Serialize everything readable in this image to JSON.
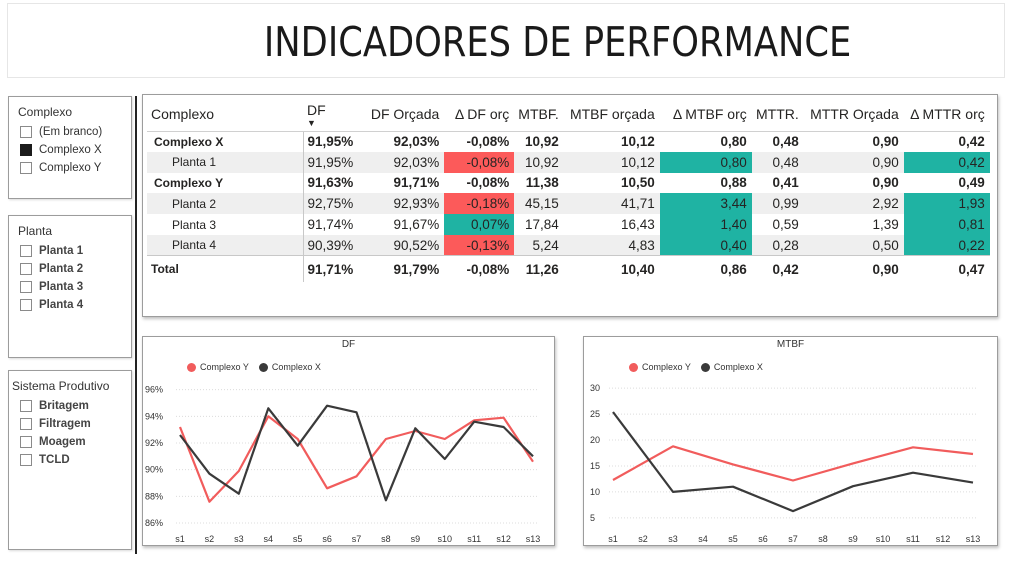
{
  "title": "INDICADORES DE PERFORMANCE",
  "colors": {
    "red": "#f15c5c",
    "dark": "#3a3a3a",
    "cell_red": "#fc5a5a",
    "cell_teal": "#1fb3a3"
  },
  "slicers": {
    "complexo": {
      "title": "Complexo",
      "items": [
        {
          "label": "(Em branco)",
          "checked": false
        },
        {
          "label": "Complexo X",
          "checked": true
        },
        {
          "label": "Complexo Y",
          "checked": false
        }
      ]
    },
    "planta": {
      "title": "Planta",
      "items": [
        {
          "label": "Planta 1",
          "checked": false
        },
        {
          "label": "Planta 2",
          "checked": false
        },
        {
          "label": "Planta 3",
          "checked": false
        },
        {
          "label": "Planta 4",
          "checked": false
        }
      ]
    },
    "sistema": {
      "title": "Sistema Produtivo",
      "items": [
        {
          "label": "Britagem",
          "checked": false
        },
        {
          "label": "Filtragem",
          "checked": false
        },
        {
          "label": "Moagem",
          "checked": false
        },
        {
          "label": "TCLD",
          "checked": false
        }
      ]
    }
  },
  "table": {
    "headers": [
      "Complexo",
      "DF",
      "DF Orçada",
      "Δ DF orç",
      "MTBF.",
      "MTBF orçada",
      "Δ MTBF orç",
      "MTTR.",
      "MTTR Orçada",
      "Δ MTTR orç"
    ],
    "sort_indicator": "▼",
    "rows": [
      {
        "type": "grp",
        "cells": [
          "Complexo X",
          "91,95%",
          "92,03%",
          "-0,08%",
          "10,92",
          "10,12",
          "0,80",
          "0,48",
          "0,90",
          "0,42"
        ],
        "hl": [
          "",
          "",
          "",
          "",
          "",
          "",
          "",
          "",
          "",
          ""
        ]
      },
      {
        "type": "sub alt",
        "cells": [
          "Planta 1",
          "91,95%",
          "92,03%",
          "-0,08%",
          "10,92",
          "10,12",
          "0,80",
          "0,48",
          "0,90",
          "0,42"
        ],
        "hl": [
          "",
          "",
          "",
          "red",
          "",
          "",
          "teal",
          "",
          "",
          "teal"
        ]
      },
      {
        "type": "grp",
        "cells": [
          "Complexo Y",
          "91,63%",
          "91,71%",
          "-0,08%",
          "11,38",
          "10,50",
          "0,88",
          "0,41",
          "0,90",
          "0,49"
        ],
        "hl": [
          "",
          "",
          "",
          "",
          "",
          "",
          "",
          "",
          "",
          ""
        ]
      },
      {
        "type": "sub alt",
        "cells": [
          "Planta 2",
          "92,75%",
          "92,93%",
          "-0,18%",
          "45,15",
          "41,71",
          "3,44",
          "0,99",
          "2,92",
          "1,93"
        ],
        "hl": [
          "",
          "",
          "",
          "red",
          "",
          "",
          "teal",
          "",
          "",
          "teal"
        ]
      },
      {
        "type": "sub",
        "cells": [
          "Planta 3",
          "91,74%",
          "91,67%",
          "0,07%",
          "17,84",
          "16,43",
          "1,40",
          "0,59",
          "1,39",
          "0,81"
        ],
        "hl": [
          "",
          "",
          "",
          "teal",
          "",
          "",
          "teal",
          "",
          "",
          "teal"
        ]
      },
      {
        "type": "sub alt",
        "cells": [
          "Planta 4",
          "90,39%",
          "90,52%",
          "-0,13%",
          "5,24",
          "4,83",
          "0,40",
          "0,28",
          "0,50",
          "0,22"
        ],
        "hl": [
          "",
          "",
          "",
          "red",
          "",
          "",
          "teal",
          "",
          "",
          "teal"
        ]
      },
      {
        "type": "total",
        "cells": [
          "Total",
          "91,71%",
          "91,79%",
          "-0,08%",
          "11,26",
          "10,40",
          "0,86",
          "0,42",
          "0,90",
          "0,47"
        ],
        "hl": [
          "",
          "",
          "",
          "",
          "",
          "",
          "",
          "",
          "",
          ""
        ]
      }
    ]
  },
  "chart_data": [
    {
      "type": "line",
      "title": "DF",
      "x": [
        "s1",
        "s2",
        "s3",
        "s4",
        "s5",
        "s6",
        "s7",
        "s8",
        "s9",
        "s10",
        "s11",
        "s12",
        "s13"
      ],
      "yticks": [
        "86%",
        "88%",
        "90%",
        "92%",
        "94%",
        "96%"
      ],
      "ylim": [
        86,
        96.5
      ],
      "legend_position": "top-left",
      "series": [
        {
          "name": "Complexo Y",
          "color": "#f15c5c",
          "values": [
            93.2,
            87.6,
            89.9,
            94.0,
            92.3,
            88.6,
            89.5,
            92.3,
            92.9,
            92.3,
            93.7,
            93.9,
            90.6
          ]
        },
        {
          "name": "Complexo X",
          "color": "#3a3a3a",
          "values": [
            92.6,
            89.7,
            88.2,
            94.6,
            91.8,
            94.8,
            94.3,
            87.7,
            93.1,
            90.8,
            93.6,
            93.2,
            91.0
          ]
        }
      ]
    },
    {
      "type": "line",
      "title": "MTBF",
      "x": [
        "s1",
        "s2",
        "s3",
        "s4",
        "s5",
        "s6",
        "s7",
        "s8",
        "s9",
        "s10",
        "s11",
        "s12",
        "s13"
      ],
      "yticks": [
        "5",
        "10",
        "15",
        "20",
        "25",
        "30"
      ],
      "ylim": [
        4,
        31
      ],
      "legend_position": "top-left",
      "series": [
        {
          "name": "Complexo Y",
          "color": "#f15c5c",
          "points": [
            [
              0,
              12.3
            ],
            [
              2,
              18.8
            ],
            [
              4,
              15.3
            ],
            [
              6,
              12.2
            ],
            [
              8,
              15.5
            ],
            [
              10,
              18.6
            ],
            [
              12,
              17.3
            ]
          ]
        },
        {
          "name": "Complexo X",
          "color": "#3a3a3a",
          "points": [
            [
              0,
              25.4
            ],
            [
              2,
              10.0
            ],
            [
              4,
              11.0
            ],
            [
              6,
              6.3
            ],
            [
              8,
              11.1
            ],
            [
              10,
              13.7
            ],
            [
              12,
              11.8
            ]
          ]
        }
      ]
    }
  ]
}
